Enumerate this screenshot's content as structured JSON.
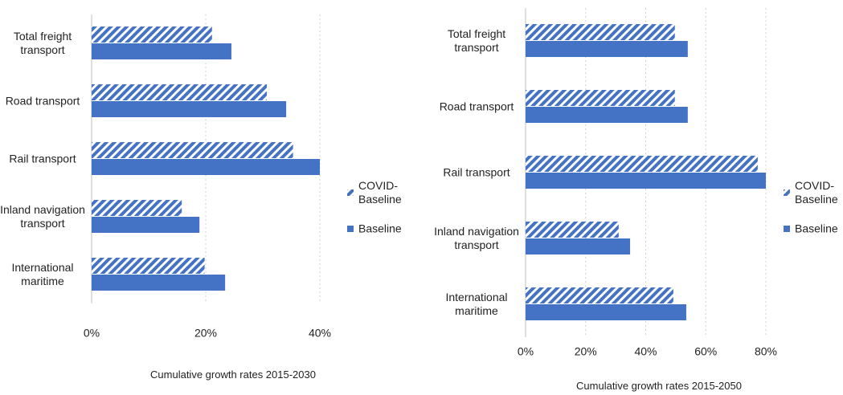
{
  "chart_data": [
    {
      "type": "hbar",
      "x_label": "Cumulative growth rates 2015-2030",
      "categories": [
        "Total freight transport",
        "Road transport",
        "Rail transport",
        "Inland navigation transport",
        "International maritime"
      ],
      "series": [
        {
          "name": "COVID-Baseline",
          "color": "#4472c4",
          "hatch": true,
          "values": [
            21.1,
            30.7,
            35.3,
            15.8,
            19.8
          ]
        },
        {
          "name": "Baseline",
          "color": "#4472c4",
          "hatch": false,
          "values": [
            24.5,
            34.1,
            40,
            18.9,
            23.4
          ]
        }
      ],
      "xlim": [
        0,
        40
      ],
      "xticks": [
        {
          "value": 0,
          "label": "0%"
        },
        {
          "value": 20,
          "label": "20%"
        },
        {
          "value": 40,
          "label": "40%"
        }
      ],
      "grid": true
    },
    {
      "type": "hbar",
      "x_label": "Cumulative growth rates 2015-2050",
      "categories": [
        "Total freight transport",
        "Road transport",
        "Rail transport",
        "Inland navigation transport",
        "International maritime"
      ],
      "series": [
        {
          "name": "COVID-Baseline",
          "color": "#4472c4",
          "hatch": true,
          "values": [
            49.7,
            49.7,
            77.3,
            31,
            49.2
          ]
        },
        {
          "name": "Baseline",
          "color": "#4472c4",
          "hatch": false,
          "values": [
            54,
            54,
            80,
            34.8,
            53.5
          ]
        }
      ],
      "xlim": [
        0,
        80
      ],
      "xticks": [
        {
          "value": 0,
          "label": "0%"
        },
        {
          "value": 20,
          "label": "20%"
        },
        {
          "value": 40,
          "label": "40%"
        },
        {
          "value": 60,
          "label": "60%"
        },
        {
          "value": 80,
          "label": "80%"
        }
      ],
      "grid": true
    }
  ]
}
